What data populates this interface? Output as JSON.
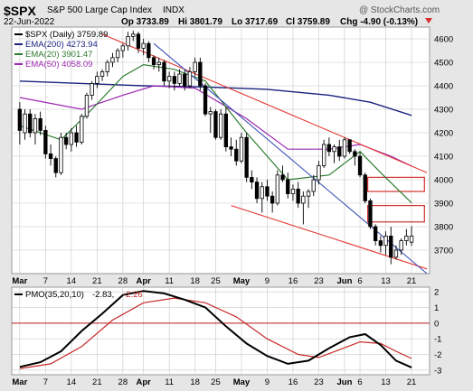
{
  "header": {
    "symbol": "$SPX",
    "name": "S&P 500 Large Cap Index",
    "exchange": "INDX",
    "date": "22-Jun-2022",
    "op": "Op 3733.89",
    "hi": "Hi 3801.79",
    "lo": "Lo 3717.69",
    "cl": "Cl 3759.89",
    "chg": "Chg -4.90 (-0.13%)",
    "chg_arrow": "down-triangle-icon",
    "watermark": "@ StockCharts.com"
  },
  "colors": {
    "background": "#ffffff",
    "plot_bg": "#ffffff",
    "frame_bg": "#e6e6e6",
    "grid": "#c8c8c8",
    "candle": "#000000",
    "ema200": "#1a237e",
    "ema20": "#2e7d32",
    "ema50": "#9c27b0",
    "trend_red": "#e53935",
    "trend_blue": "#3f51b5",
    "rect": "#d32f2f",
    "pmo": "#000000",
    "pmo_signal": "#c62828",
    "zero_line": "#b71c1c"
  },
  "chart_data": [
    {
      "type": "candlestick",
      "title": "$SPX S&P 500 Large Cap Index INDX",
      "ylim": [
        3600,
        4650
      ],
      "yticks": [
        3700,
        3800,
        3900,
        4000,
        4100,
        4200,
        4300,
        4400,
        4500,
        4600
      ],
      "xticks": [
        {
          "label": "Mar",
          "i": 0
        },
        {
          "label": "7",
          "i": 5
        },
        {
          "label": "14",
          "i": 10
        },
        {
          "label": "21",
          "i": 15
        },
        {
          "label": "28",
          "i": 20
        },
        {
          "label": "Apr",
          "i": 24
        },
        {
          "label": "11",
          "i": 29
        },
        {
          "label": "18",
          "i": 34
        },
        {
          "label": "25",
          "i": 38
        },
        {
          "label": "May",
          "i": 43
        },
        {
          "label": "9",
          "i": 48
        },
        {
          "label": "16",
          "i": 53
        },
        {
          "label": "23",
          "i": 58
        },
        {
          "label": "Jun",
          "i": 63
        },
        {
          "label": "6",
          "i": 66
        },
        {
          "label": "13",
          "i": 71
        },
        {
          "label": "21",
          "i": 76
        }
      ],
      "legend": [
        {
          "label": "$SPX (Daily) 3759.89",
          "color": "#000000"
        },
        {
          "label": "EMA(200) 4273.94",
          "color": "#1a237e"
        },
        {
          "label": "EMA(20) 3901.47",
          "color": "#2e7d32"
        },
        {
          "label": "EMA(50) 4058.09",
          "color": "#9c27b0"
        }
      ],
      "candles": [
        [
          4300,
          4330,
          4150,
          4210
        ],
        [
          4200,
          4300,
          4170,
          4280
        ],
        [
          4280,
          4300,
          4180,
          4200
        ],
        [
          4200,
          4280,
          4150,
          4260
        ],
        [
          4260,
          4290,
          4190,
          4210
        ],
        [
          4210,
          4230,
          4090,
          4110
        ],
        [
          4110,
          4150,
          4060,
          4090
        ],
        [
          4090,
          4100,
          4010,
          4030
        ],
        [
          4030,
          4200,
          4020,
          4180
        ],
        [
          4180,
          4200,
          4130,
          4150
        ],
        [
          4150,
          4220,
          4120,
          4200
        ],
        [
          4200,
          4230,
          4140,
          4160
        ],
        [
          4160,
          4280,
          4150,
          4270
        ],
        [
          4270,
          4370,
          4260,
          4360
        ],
        [
          4360,
          4420,
          4340,
          4410
        ],
        [
          4410,
          4460,
          4390,
          4440
        ],
        [
          4440,
          4470,
          4420,
          4460
        ],
        [
          4460,
          4510,
          4440,
          4500
        ],
        [
          4500,
          4540,
          4480,
          4520
        ],
        [
          4520,
          4560,
          4500,
          4550
        ],
        [
          4550,
          4580,
          4520,
          4570
        ],
        [
          4570,
          4630,
          4550,
          4610
        ],
        [
          4610,
          4635,
          4590,
          4620
        ],
        [
          4620,
          4630,
          4540,
          4560
        ],
        [
          4560,
          4600,
          4530,
          4580
        ],
        [
          4580,
          4590,
          4500,
          4520
        ],
        [
          4520,
          4530,
          4470,
          4490
        ],
        [
          4490,
          4520,
          4460,
          4500
        ],
        [
          4500,
          4510,
          4400,
          4420
        ],
        [
          4420,
          4460,
          4390,
          4440
        ],
        [
          4440,
          4460,
          4380,
          4410
        ],
        [
          4410,
          4470,
          4400,
          4450
        ],
        [
          4450,
          4470,
          4380,
          4400
        ],
        [
          4400,
          4480,
          4390,
          4460
        ],
        [
          4460,
          4520,
          4440,
          4500
        ],
        [
          4500,
          4520,
          4380,
          4400
        ],
        [
          4400,
          4410,
          4270,
          4280
        ],
        [
          4280,
          4310,
          4200,
          4290
        ],
        [
          4290,
          4300,
          4170,
          4180
        ],
        [
          4180,
          4300,
          4170,
          4280
        ],
        [
          4280,
          4310,
          4120,
          4140
        ],
        [
          4140,
          4180,
          4100,
          4130
        ],
        [
          4130,
          4170,
          4060,
          4080
        ],
        [
          4080,
          4200,
          4070,
          4180
        ],
        [
          4180,
          4200,
          3990,
          4010
        ],
        [
          4010,
          4040,
          3960,
          3990
        ],
        [
          3990,
          4010,
          3900,
          3920
        ],
        [
          3920,
          3990,
          3860,
          3970
        ],
        [
          3970,
          4000,
          3910,
          3930
        ],
        [
          3930,
          3950,
          3860,
          3900
        ],
        [
          3900,
          4040,
          3890,
          4020
        ],
        [
          4020,
          4060,
          3990,
          4000
        ],
        [
          4000,
          4030,
          3920,
          3940
        ],
        [
          3940,
          3980,
          3910,
          3960
        ],
        [
          3960,
          3990,
          3880,
          3900
        ],
        [
          3900,
          3950,
          3810,
          3930
        ],
        [
          3930,
          3960,
          3880,
          3950
        ],
        [
          3950,
          4020,
          3930,
          4000
        ],
        [
          4000,
          4080,
          3980,
          4060
        ],
        [
          4060,
          4170,
          4050,
          4150
        ],
        [
          4150,
          4180,
          4100,
          4120
        ],
        [
          4120,
          4150,
          4070,
          4140
        ],
        [
          4140,
          4170,
          4080,
          4100
        ],
        [
          4100,
          4180,
          4090,
          4170
        ],
        [
          4170,
          4160,
          4110,
          4120
        ],
        [
          4120,
          4130,
          4060,
          4100
        ],
        [
          4100,
          4120,
          4010,
          4020
        ],
        [
          4020,
          4030,
          3900,
          3910
        ],
        [
          3910,
          3920,
          3790,
          3800
        ],
        [
          3800,
          3810,
          3720,
          3740
        ],
        [
          3740,
          3760,
          3690,
          3720
        ],
        [
          3720,
          3780,
          3680,
          3760
        ],
        [
          3760,
          3800,
          3640,
          3670
        ],
        [
          3670,
          3720,
          3660,
          3700
        ],
        [
          3700,
          3750,
          3680,
          3740
        ],
        [
          3740,
          3790,
          3720,
          3760
        ],
        [
          3733.89,
          3801.79,
          3717.69,
          3759.89
        ]
      ],
      "ema200": [
        [
          0,
          4420
        ],
        [
          12,
          4410
        ],
        [
          24,
          4400
        ],
        [
          36,
          4395
        ],
        [
          48,
          4385
        ],
        [
          60,
          4360
        ],
        [
          68,
          4330
        ],
        [
          76,
          4274
        ]
      ],
      "ema20": [
        [
          0,
          4230
        ],
        [
          8,
          4170
        ],
        [
          14,
          4300
        ],
        [
          20,
          4440
        ],
        [
          24,
          4490
        ],
        [
          30,
          4470
        ],
        [
          36,
          4420
        ],
        [
          44,
          4200
        ],
        [
          52,
          4000
        ],
        [
          60,
          4020
        ],
        [
          66,
          4120
        ],
        [
          70,
          4030
        ],
        [
          76,
          3901
        ]
      ],
      "ema50": [
        [
          0,
          4350
        ],
        [
          12,
          4300
        ],
        [
          20,
          4360
        ],
        [
          26,
          4400
        ],
        [
          34,
          4390
        ],
        [
          44,
          4260
        ],
        [
          52,
          4130
        ],
        [
          60,
          4130
        ],
        [
          66,
          4150
        ],
        [
          72,
          4100
        ],
        [
          76,
          4058
        ]
      ],
      "trendlines": [
        {
          "color": "red",
          "points": [
            [
              16,
              4620
            ],
            [
              79,
              4030
            ]
          ]
        },
        {
          "color": "red",
          "points": [
            [
              41,
              3890
            ],
            [
              79,
              3620
            ]
          ]
        },
        {
          "color": "blue",
          "points": [
            [
              26,
              4580
            ],
            [
              79,
              3600
            ]
          ]
        }
      ],
      "boxes": [
        {
          "i0": 67.5,
          "i1": 78.5,
          "y0": 3950,
          "y1": 4010
        },
        {
          "i0": 67.5,
          "i1": 78.5,
          "y0": 3820,
          "y1": 3890
        }
      ]
    },
    {
      "type": "line",
      "title": "PMO(35,20,10) -2.83, -2.26",
      "ylim": [
        -3.3,
        2.3
      ],
      "yticks": [
        -3,
        -2,
        -1,
        0,
        1,
        2
      ],
      "legend": [
        {
          "label": "PMO(35,20,10)",
          "color": "#000000"
        },
        {
          "label": "-2.83,",
          "color": "#000000"
        },
        {
          "label": "-2.26",
          "color": "#c62828"
        }
      ],
      "series": [
        {
          "name": "PMO(35,20,10)",
          "points": [
            [
              0,
              -2.8
            ],
            [
              4,
              -2.5
            ],
            [
              8,
              -1.8
            ],
            [
              12,
              -0.5
            ],
            [
              16,
              0.6
            ],
            [
              20,
              1.8
            ],
            [
              24,
              2.05
            ],
            [
              28,
              1.9
            ],
            [
              32,
              1.5
            ],
            [
              36,
              1.0
            ],
            [
              40,
              -0.2
            ],
            [
              44,
              -1.3
            ],
            [
              48,
              -2.1
            ],
            [
              52,
              -2.6
            ],
            [
              56,
              -2.4
            ],
            [
              60,
              -1.6
            ],
            [
              64,
              -0.9
            ],
            [
              67,
              -0.7
            ],
            [
              70,
              -1.4
            ],
            [
              73,
              -2.4
            ],
            [
              76,
              -2.83
            ]
          ]
        },
        {
          "name": "Signal",
          "points": [
            [
              0,
              -2.9
            ],
            [
              6,
              -2.6
            ],
            [
              12,
              -1.5
            ],
            [
              18,
              0.2
            ],
            [
              24,
              1.3
            ],
            [
              30,
              1.6
            ],
            [
              36,
              1.3
            ],
            [
              42,
              0.4
            ],
            [
              48,
              -1.0
            ],
            [
              54,
              -2.0
            ],
            [
              58,
              -2.2
            ],
            [
              62,
              -1.7
            ],
            [
              66,
              -1.2
            ],
            [
              70,
              -1.3
            ],
            [
              73,
              -1.8
            ],
            [
              76,
              -2.26
            ]
          ]
        }
      ],
      "zero_line": 0
    }
  ]
}
